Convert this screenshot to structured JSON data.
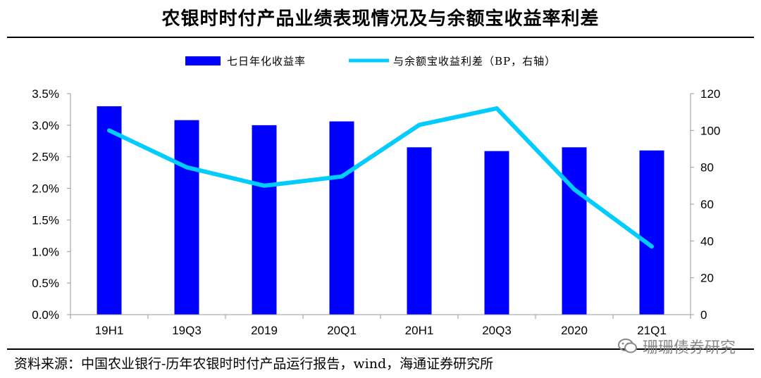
{
  "title": "农银时时付产品业绩表现情况及与余额宝收益率利差",
  "source": "资料来源：中国农业银行-历年农银时时付产品运行报告，wind，海通证券研究所",
  "watermark": "珊珊债券研究",
  "colors": {
    "bar": "#0000ff",
    "line": "#00ccff",
    "axis": "#999999"
  },
  "chart_data": {
    "type": "bar",
    "categories": [
      "19H1",
      "19Q3",
      "2019",
      "20Q1",
      "20H1",
      "20Q3",
      "2020",
      "21Q1"
    ],
    "series": [
      {
        "name": "七日年化收益率",
        "type": "bar",
        "axis": "left",
        "values": [
          3.3,
          3.08,
          3.0,
          3.06,
          2.65,
          2.59,
          2.65,
          2.6
        ]
      },
      {
        "name": "与余额宝收益利差（BP，右轴）",
        "type": "line",
        "axis": "right",
        "values": [
          100,
          80,
          70,
          75,
          103,
          112,
          68,
          37
        ]
      }
    ],
    "left_axis": {
      "min": 0,
      "max": 3.5,
      "step": 0.5,
      "tick_labels": [
        "0.0%",
        "0.5%",
        "1.0%",
        "1.5%",
        "2.0%",
        "2.5%",
        "3.0%",
        "3.5%"
      ]
    },
    "right_axis": {
      "min": 0,
      "max": 120,
      "step": 20,
      "tick_labels": [
        "0",
        "20",
        "40",
        "60",
        "80",
        "100",
        "120"
      ]
    },
    "legend_position": "top-center",
    "grid": false
  }
}
